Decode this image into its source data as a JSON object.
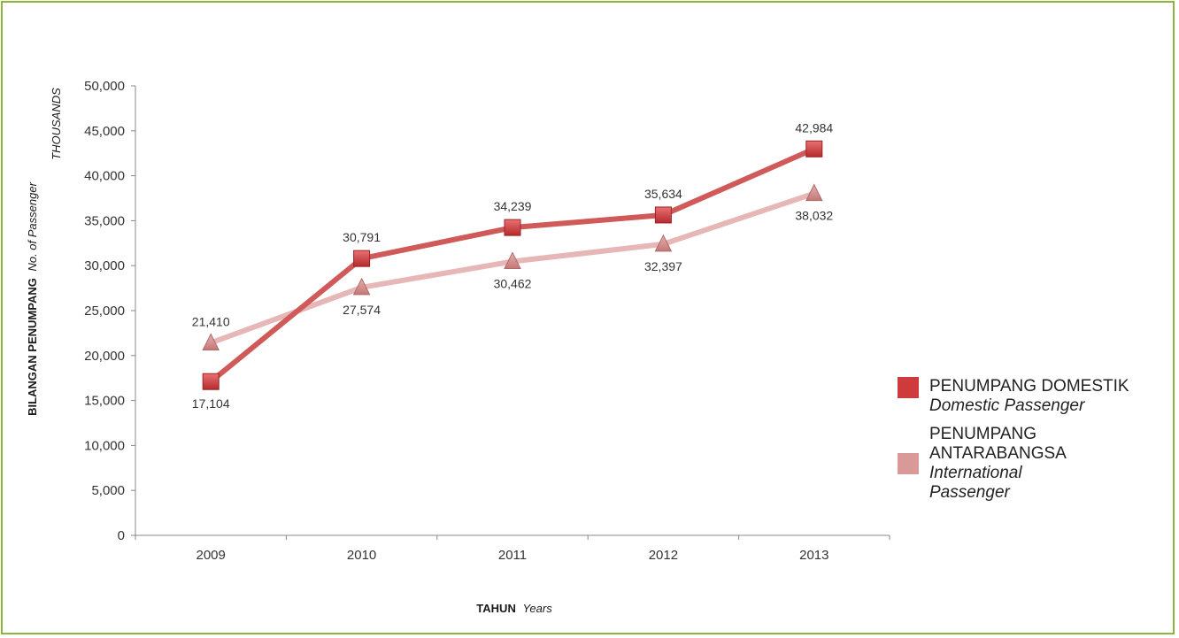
{
  "colors": {
    "border": "#8db53c",
    "domestic_line": "#d0595a",
    "domestic_marker": "#cf3b3d",
    "international_line": "#e6b7b6",
    "international_marker": "#d89998",
    "axis": "#888888"
  },
  "chart_data": {
    "type": "line",
    "title": "",
    "categories": [
      "2009",
      "2010",
      "2011",
      "2012",
      "2013"
    ],
    "ylim": [
      0,
      50000
    ],
    "yticks": [
      0,
      5000,
      10000,
      15000,
      20000,
      25000,
      30000,
      35000,
      40000,
      45000,
      50000
    ],
    "ytick_labels": [
      "0",
      "5,000",
      "10,000",
      "15,000",
      "20,000",
      "25,000",
      "30,000",
      "35,000",
      "40,000",
      "45,000",
      "50,000"
    ],
    "units_label": "THOUSANDS",
    "ylabel_bold": "BILANGAN PENUMPANG",
    "ylabel_italic": "No. of Passenger",
    "xlabel_bold": "TAHUN",
    "xlabel_italic": "Years",
    "grid": false,
    "legend_position": "right",
    "series": [
      {
        "name": "PENUMPANG DOMESTIK",
        "name_en": "Domestic Passenger",
        "marker": "square",
        "values": [
          17104,
          30791,
          34239,
          35634,
          42984
        ],
        "labels": [
          "17,104",
          "30,791",
          "34,239",
          "35,634",
          "42,984"
        ],
        "label_positions": [
          "below",
          "above",
          "above",
          "above",
          "above"
        ]
      },
      {
        "name": "PENUMPANG ANTARABANGSA",
        "name_en": "International Passenger",
        "marker": "triangle",
        "values": [
          21410,
          27574,
          30462,
          32397,
          38032
        ],
        "labels": [
          "21,410",
          "27,574",
          "30,462",
          "32,397",
          "38,032"
        ],
        "label_positions": [
          "above",
          "below",
          "below",
          "below",
          "below"
        ]
      }
    ]
  },
  "legend": {
    "items": [
      {
        "line1": "PENUMPANG DOMESTIK",
        "line2": "Domestic Passenger"
      },
      {
        "line1": "PENUMPANG ANTARABANGSA",
        "line2": "International Passenger"
      }
    ]
  }
}
